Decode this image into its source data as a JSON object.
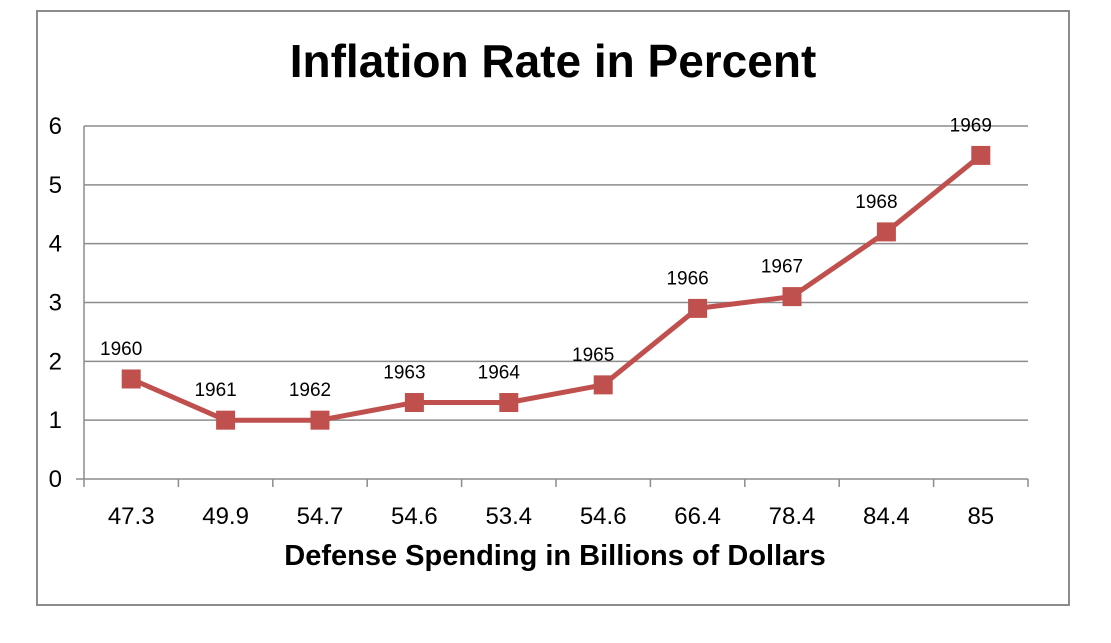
{
  "chart_data": {
    "type": "line",
    "title": "Inflation Rate in Percent",
    "xlabel": "Defense Spending in Billions of Dollars",
    "ylabel": "",
    "categories": [
      "47.3",
      "49.9",
      "54.7",
      "54.6",
      "53.4",
      "54.6",
      "66.4",
      "78.4",
      "84.4",
      "85"
    ],
    "series": [
      {
        "values": [
          1.7,
          1.0,
          1.0,
          1.3,
          1.3,
          1.6,
          2.9,
          3.1,
          4.2,
          5.5
        ],
        "point_labels": [
          "1960",
          "1961",
          "1962",
          "1963",
          "1964",
          "1965",
          "1966",
          "1967",
          "1968",
          "1969"
        ],
        "color": "#c0504d"
      }
    ],
    "ylim": [
      0,
      6
    ],
    "yticks": [
      "0",
      "1",
      "2",
      "3",
      "4",
      "5",
      "6"
    ],
    "grid": true,
    "legend": "none",
    "marker": "square"
  },
  "colors": {
    "series": "#c0504d",
    "grid": "#8c8c8c",
    "frame": "#8c8c8c"
  }
}
